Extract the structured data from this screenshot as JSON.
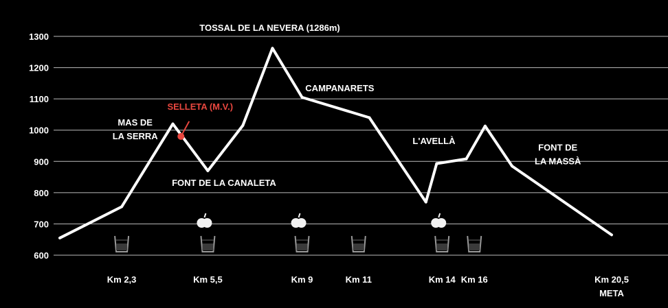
{
  "chart_data": {
    "type": "line",
    "title": "",
    "xlabel": "",
    "ylabel": "",
    "ylim": [
      600,
      1300
    ],
    "yticks": [
      "1300",
      "1200",
      "1100",
      "1000",
      "900",
      "800",
      "700",
      "600"
    ],
    "grid": true,
    "series": [
      {
        "color": "#ffffff",
        "points": [
          {
            "x": 0.0,
            "y": 655
          },
          {
            "x": 2.3,
            "y": 755
          },
          {
            "x": 4.2,
            "y": 1020
          },
          {
            "x": 5.5,
            "y": 870
          },
          {
            "x": 6.8,
            "y": 1015
          },
          {
            "x": 7.9,
            "y": 1262
          },
          {
            "x": 9.0,
            "y": 1105
          },
          {
            "x": 11.5,
            "y": 1040
          },
          {
            "x": 13.6,
            "y": 770
          },
          {
            "x": 14.0,
            "y": 893
          },
          {
            "x": 15.1,
            "y": 908
          },
          {
            "x": 15.8,
            "y": 1013
          },
          {
            "x": 16.8,
            "y": 885
          },
          {
            "x": 20.5,
            "y": 665
          }
        ]
      }
    ],
    "marker": {
      "label": "SELLETA (M.V.)",
      "x": 4.5,
      "y": 980,
      "color": "#e8473f"
    },
    "annotations": [
      {
        "lines": [
          "TOSSAL DE LA NEVERA (1286m)"
        ],
        "x": 7.8,
        "y": 1318
      },
      {
        "lines": [
          "MAS DE",
          "LA SERRA"
        ],
        "x": 2.8,
        "y": 1015
      },
      {
        "lines": [
          "FONT DE LA CANALETA"
        ],
        "x": 6.1,
        "y": 822
      },
      {
        "lines": [
          "CAMPANARETS"
        ],
        "x": 10.4,
        "y": 1125
      },
      {
        "lines": [
          "L'AVELLÀ"
        ],
        "x": 13.9,
        "y": 955
      },
      {
        "lines": [
          "FONT DE",
          "LA MASSÀ"
        ],
        "x": 18.5,
        "y": 935
      }
    ],
    "km_labels": [
      {
        "lines": [
          "Km 2,3"
        ],
        "x": 2.3
      },
      {
        "lines": [
          "Km 5,5"
        ],
        "x": 5.5
      },
      {
        "lines": [
          "Km 9"
        ],
        "x": 9.0
      },
      {
        "lines": [
          "Km 11"
        ],
        "x": 11.1
      },
      {
        "lines": [
          "Km 14"
        ],
        "x": 14.2
      },
      {
        "lines": [
          "Km 16"
        ],
        "x": 15.4
      },
      {
        "lines": [
          "Km 20,5",
          "META"
        ],
        "x": 20.5
      }
    ],
    "water_stations": [
      2.3,
      5.5,
      9.0,
      11.1,
      14.2,
      15.4
    ],
    "food_stations": [
      5.5,
      9.0,
      14.2
    ]
  }
}
